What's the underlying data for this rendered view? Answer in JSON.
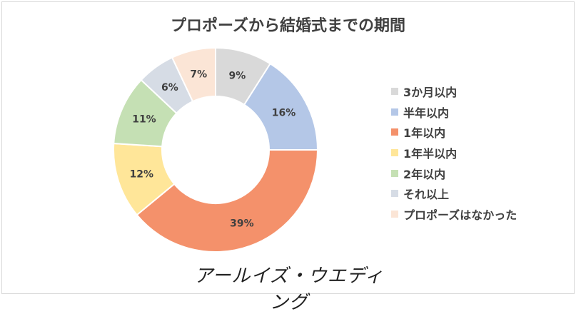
{
  "chart_data": {
    "type": "pie",
    "title": "プロポーズから結婚式までの期間",
    "categories": [
      "3か月以内",
      "半年以内",
      "1年以内",
      "1年半以内",
      "2年以内",
      "それ以上",
      "プロポーズはなかった"
    ],
    "values": [
      9,
      16,
      39,
      12,
      11,
      6,
      7
    ],
    "labels": [
      "9%",
      "16%",
      "39%",
      "12%",
      "11%",
      "6%",
      "7%"
    ],
    "colors": [
      "#d9d9d9",
      "#b4c7e7",
      "#f4916b",
      "#ffe699",
      "#c5e0b4",
      "#d6dce5",
      "#fbe5d6"
    ],
    "legend_position": "right",
    "donut": true
  },
  "watermark": "アールイズ・ウエディング"
}
